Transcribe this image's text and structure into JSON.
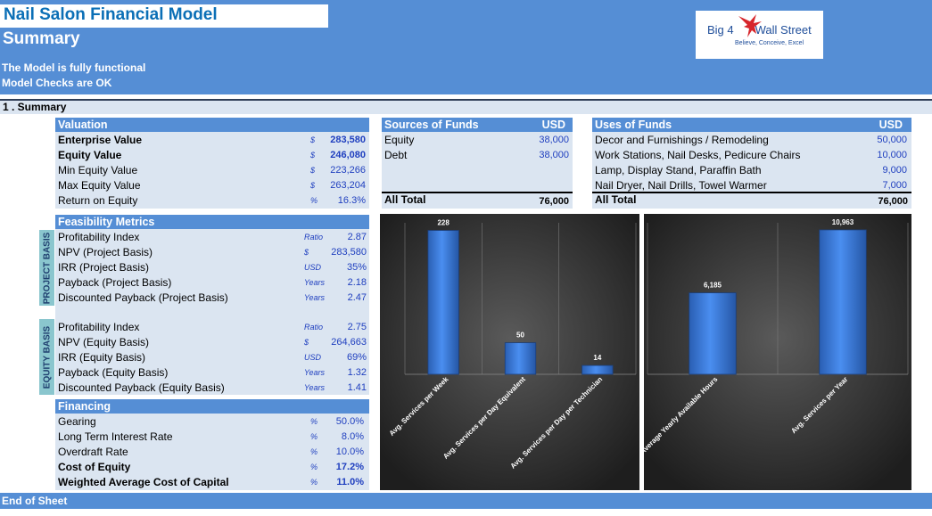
{
  "header": {
    "title": "Nail Salon Financial Model",
    "subtitle": "Summary",
    "status_1": "The Model is fully functional",
    "status_2": "Model Checks are OK",
    "logo_text": "Big 4",
    "logo_text_2": "Wall Street",
    "logo_tagline": "Believe, Conceive, Excel"
  },
  "section": {
    "title": "1 . Summary"
  },
  "valuation": {
    "header": "Valuation",
    "rows": [
      {
        "label": "Enterprise Value",
        "unit": "$",
        "value": "283,580"
      },
      {
        "label": "Equity Value",
        "unit": "$",
        "value": "246,080"
      },
      {
        "label": "Min Equity Value",
        "unit": "$",
        "value": "223,266"
      },
      {
        "label": "Max Equity Value",
        "unit": "$",
        "value": "263,204"
      },
      {
        "label": "Return on Equity",
        "unit": "%",
        "value": "16.3%"
      }
    ]
  },
  "feasibility": {
    "header": "Feasibility Metrics",
    "project_label": "PROJECT BASIS",
    "equity_label": "EQUITY BASIS",
    "project_rows": [
      {
        "label": "Profitability Index",
        "unit": "Ratio",
        "value": "2.87"
      },
      {
        "label": "NPV (Project Basis)",
        "unit": "$",
        "value": "283,580"
      },
      {
        "label": "IRR (Project Basis)",
        "unit": "USD",
        "value": "35%"
      },
      {
        "label": "Payback  (Project Basis)",
        "unit": "Years",
        "value": "2.18"
      },
      {
        "label": "Discounted Payback  (Project Basis)",
        "unit": "Years",
        "value": "2.47"
      }
    ],
    "equity_rows": [
      {
        "label": "Profitability Index",
        "unit": "Ratio",
        "value": "2.75"
      },
      {
        "label": "NPV (Equity Basis)",
        "unit": "$",
        "value": "264,663"
      },
      {
        "label": "IRR (Equity Basis)",
        "unit": "USD",
        "value": "69%"
      },
      {
        "label": "Payback  (Equity Basis)",
        "unit": "Years",
        "value": "1.32"
      },
      {
        "label": "Discounted Payback  (Equity Basis)",
        "unit": "Years",
        "value": "1.41"
      }
    ]
  },
  "financing": {
    "header": "Financing",
    "rows": [
      {
        "label": "Gearing",
        "unit": "%",
        "value": "50.0%"
      },
      {
        "label": "Long Term Interest Rate",
        "unit": "%",
        "value": "8.0%"
      },
      {
        "label": "Overdraft Rate",
        "unit": "%",
        "value": "10.0%"
      },
      {
        "label": "Cost of Equity",
        "unit": "%",
        "value": "17.2%"
      },
      {
        "label": "Weighted Average Cost of Capital",
        "unit": "%",
        "value": "11.0%"
      }
    ]
  },
  "sources": {
    "header": "Sources of Funds",
    "currency": "USD",
    "rows": [
      {
        "label": "Equity",
        "value": "38,000"
      },
      {
        "label": "Debt",
        "value": "38,000"
      }
    ],
    "total_label": "All Total",
    "total_value": "76,000"
  },
  "uses": {
    "header": "Uses of Funds",
    "currency": "USD",
    "rows": [
      {
        "label": "Decor and Furnishings / Remodeling",
        "value": "50,000"
      },
      {
        "label": "Work Stations, Nail Desks, Pedicure Chairs",
        "value": "10,000"
      },
      {
        "label": "Lamp, Display Stand, Paraffin Bath",
        "value": "9,000"
      },
      {
        "label": "Nail Dryer, Nail Drills, Towel Warmer",
        "value": "7,000"
      }
    ],
    "total_label": "All Total",
    "total_value": "76,000"
  },
  "footer": {
    "text": "End of Sheet"
  },
  "chart_data": [
    {
      "type": "bar",
      "categories": [
        "Avg. Services per Week",
        "Avg. Services per Day Equivalent",
        "Avg. Services per Day per Technician"
      ],
      "values": [
        228,
        50,
        14
      ],
      "value_labels": [
        "228",
        "50",
        "14"
      ],
      "ylim": [
        0,
        240
      ],
      "grid": true,
      "bar_color": "#3a78d6",
      "background": "dark-radial"
    },
    {
      "type": "bar",
      "categories": [
        "Average Yearly Available Hours",
        "Avg. Services per Year"
      ],
      "values": [
        6185,
        10963
      ],
      "value_labels": [
        "6,185",
        "10,963"
      ],
      "ylim": [
        0,
        11500
      ],
      "grid": true,
      "bar_color": "#3a78d6",
      "background": "dark-radial"
    }
  ]
}
